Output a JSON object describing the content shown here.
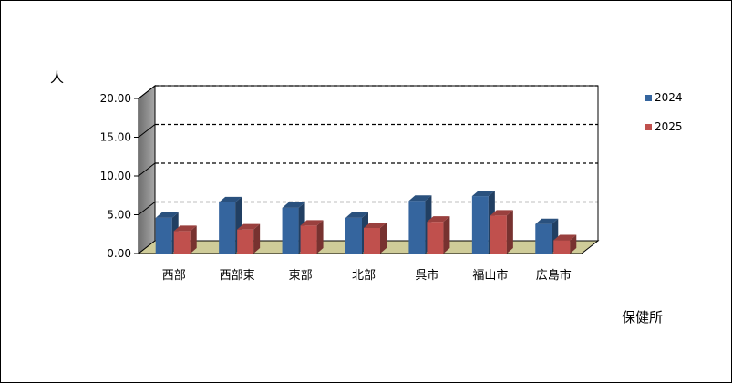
{
  "chart_data": {
    "type": "bar",
    "title": "",
    "ylabel": "人",
    "xlabel": "保健所",
    "categories": [
      "西部",
      "西部東",
      "東部",
      "北部",
      "呉市",
      "福山市",
      "広島市"
    ],
    "series": [
      {
        "name": "2024",
        "color": "#35659e",
        "values": [
          4.6,
          6.6,
          5.9,
          4.6,
          6.8,
          7.4,
          3.8
        ]
      },
      {
        "name": "2025",
        "color": "#c0504d",
        "values": [
          2.9,
          3.1,
          3.6,
          3.3,
          4.1,
          4.9,
          1.7
        ]
      }
    ],
    "ylim": [
      0,
      20
    ],
    "yticks": [
      "0.00",
      "5.00",
      "10.00",
      "15.00",
      "20.00"
    ],
    "grid": true,
    "legend": "right",
    "style": "3d-clustered-column"
  }
}
